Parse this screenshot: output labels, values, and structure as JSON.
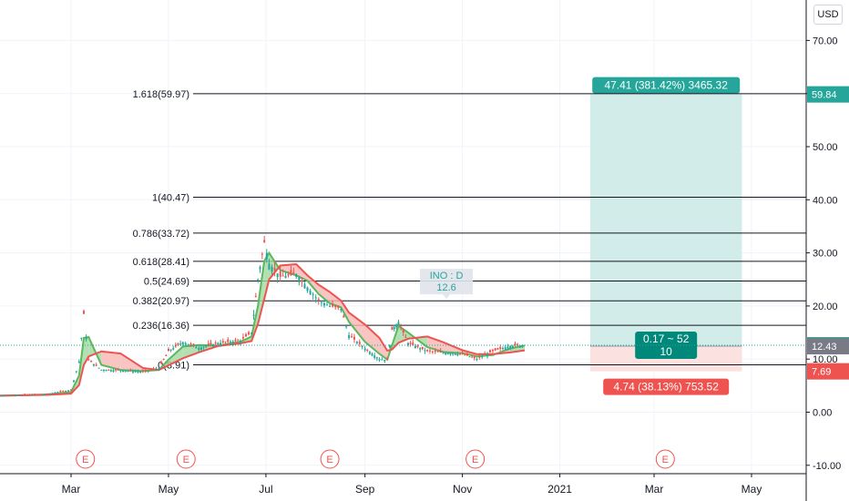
{
  "currency_button": "USD",
  "chart_data": {
    "type": "candlestick",
    "symbol_callout": {
      "title": "INO : D",
      "value": "12.6"
    },
    "y_axis": {
      "ticks": [
        -10,
        0,
        10,
        20,
        30,
        40,
        50,
        60,
        70
      ],
      "range": [
        -11,
        77
      ]
    },
    "x_axis": {
      "ticks": [
        {
          "label": "Mar",
          "date": "2020-03-01"
        },
        {
          "label": "May",
          "date": "2020-05-01"
        },
        {
          "label": "Jul",
          "date": "2020-07-01"
        },
        {
          "label": "Sep",
          "date": "2020-09-01"
        },
        {
          "label": "Nov",
          "date": "2020-11-01"
        },
        {
          "label": "2021",
          "date": "2021-01-01"
        },
        {
          "label": "Mar",
          "date": "2021-03-01"
        },
        {
          "label": "May",
          "date": "2021-05-01"
        }
      ]
    },
    "price_series": [
      {
        "date": "2020-01-15",
        "close": 3.1
      },
      {
        "date": "2020-02-01",
        "close": 3.3
      },
      {
        "date": "2020-02-15",
        "close": 3.4
      },
      {
        "date": "2020-03-01",
        "close": 4.2
      },
      {
        "date": "2020-03-06",
        "close": 9.5
      },
      {
        "date": "2020-03-09",
        "close": 18.5
      },
      {
        "date": "2020-03-12",
        "close": 9.8
      },
      {
        "date": "2020-03-20",
        "close": 8.0
      },
      {
        "date": "2020-04-01",
        "close": 7.9
      },
      {
        "date": "2020-04-15",
        "close": 7.6
      },
      {
        "date": "2020-04-25",
        "close": 8.3
      },
      {
        "date": "2020-05-01",
        "close": 11.5
      },
      {
        "date": "2020-05-10",
        "close": 13.2
      },
      {
        "date": "2020-05-20",
        "close": 12.1
      },
      {
        "date": "2020-06-01",
        "close": 13.0
      },
      {
        "date": "2020-06-15",
        "close": 13.5
      },
      {
        "date": "2020-06-22",
        "close": 15.0
      },
      {
        "date": "2020-06-26",
        "close": 25.0
      },
      {
        "date": "2020-06-30",
        "close": 32.0
      },
      {
        "date": "2020-07-03",
        "close": 28.0
      },
      {
        "date": "2020-07-10",
        "close": 25.5
      },
      {
        "date": "2020-07-20",
        "close": 26.0
      },
      {
        "date": "2020-07-27",
        "close": 23.5
      },
      {
        "date": "2020-08-03",
        "close": 21.0
      },
      {
        "date": "2020-08-10",
        "close": 20.0
      },
      {
        "date": "2020-08-17",
        "close": 19.5
      },
      {
        "date": "2020-08-22",
        "close": 14.5
      },
      {
        "date": "2020-09-01",
        "close": 12.0
      },
      {
        "date": "2020-09-10",
        "close": 10.0
      },
      {
        "date": "2020-09-15",
        "close": 9.8
      },
      {
        "date": "2020-09-18",
        "close": 15.5
      },
      {
        "date": "2020-09-22",
        "close": 17.0
      },
      {
        "date": "2020-09-28",
        "close": 13.0
      },
      {
        "date": "2020-10-10",
        "close": 11.5
      },
      {
        "date": "2020-10-20",
        "close": 11.2
      },
      {
        "date": "2020-11-01",
        "close": 11.0
      },
      {
        "date": "2020-11-10",
        "close": 10.0
      },
      {
        "date": "2020-11-20",
        "close": 11.5
      },
      {
        "date": "2020-12-01",
        "close": 12.5
      },
      {
        "date": "2020-12-10",
        "close": 12.6
      }
    ],
    "fibonacci_levels": [
      {
        "label": "1.618(59.97)",
        "value": 59.97
      },
      {
        "label": "1(40.47)",
        "value": 40.47
      },
      {
        "label": "0.786(33.72)",
        "value": 33.72
      },
      {
        "label": "0.618(28.41)",
        "value": 28.41
      },
      {
        "label": "0.5(24.69)",
        "value": 24.69
      },
      {
        "label": "0.382(20.97)",
        "value": 20.97
      },
      {
        "label": "0.236(16.36)",
        "value": 16.36
      },
      {
        "label": "0(8.91)",
        "value": 8.91
      }
    ],
    "earnings_markers": [
      {
        "label": "E",
        "date": "2020-03-10"
      },
      {
        "label": "E",
        "date": "2020-05-12"
      },
      {
        "label": "E",
        "date": "2020-08-10"
      },
      {
        "label": "E",
        "date": "2020-11-09"
      },
      {
        "label": "E",
        "date": "2021-03-08"
      }
    ],
    "position": {
      "type": "long",
      "entry": 12.43,
      "target": 59.84,
      "stop": 7.69,
      "start_date": "2021-01-20",
      "end_date": "2021-04-25",
      "target_text": "47.41 (381.42%) 3465.32",
      "stop_text": "4.74 (38.13%) 753.52",
      "ratio_text": "0.17 ~ 52",
      "qty_text": "10"
    },
    "price_labels": [
      {
        "value": 59.84,
        "text": "59.84",
        "color": "#26a69a"
      },
      {
        "value": 12.6,
        "text": "12.60",
        "color": "#26a69a"
      },
      {
        "value": 12.43,
        "text": "12.43",
        "color": "#787b86"
      },
      {
        "value": 7.69,
        "text": "7.69",
        "color": "#ef5350"
      }
    ],
    "colors": {
      "up": "#26a69a",
      "down": "#ef5350",
      "profit_fill": "#d1ece9",
      "loss_fill": "#fbe2e1",
      "cloud_green": "#5cb85c",
      "cloud_red": "#ef5350"
    }
  }
}
